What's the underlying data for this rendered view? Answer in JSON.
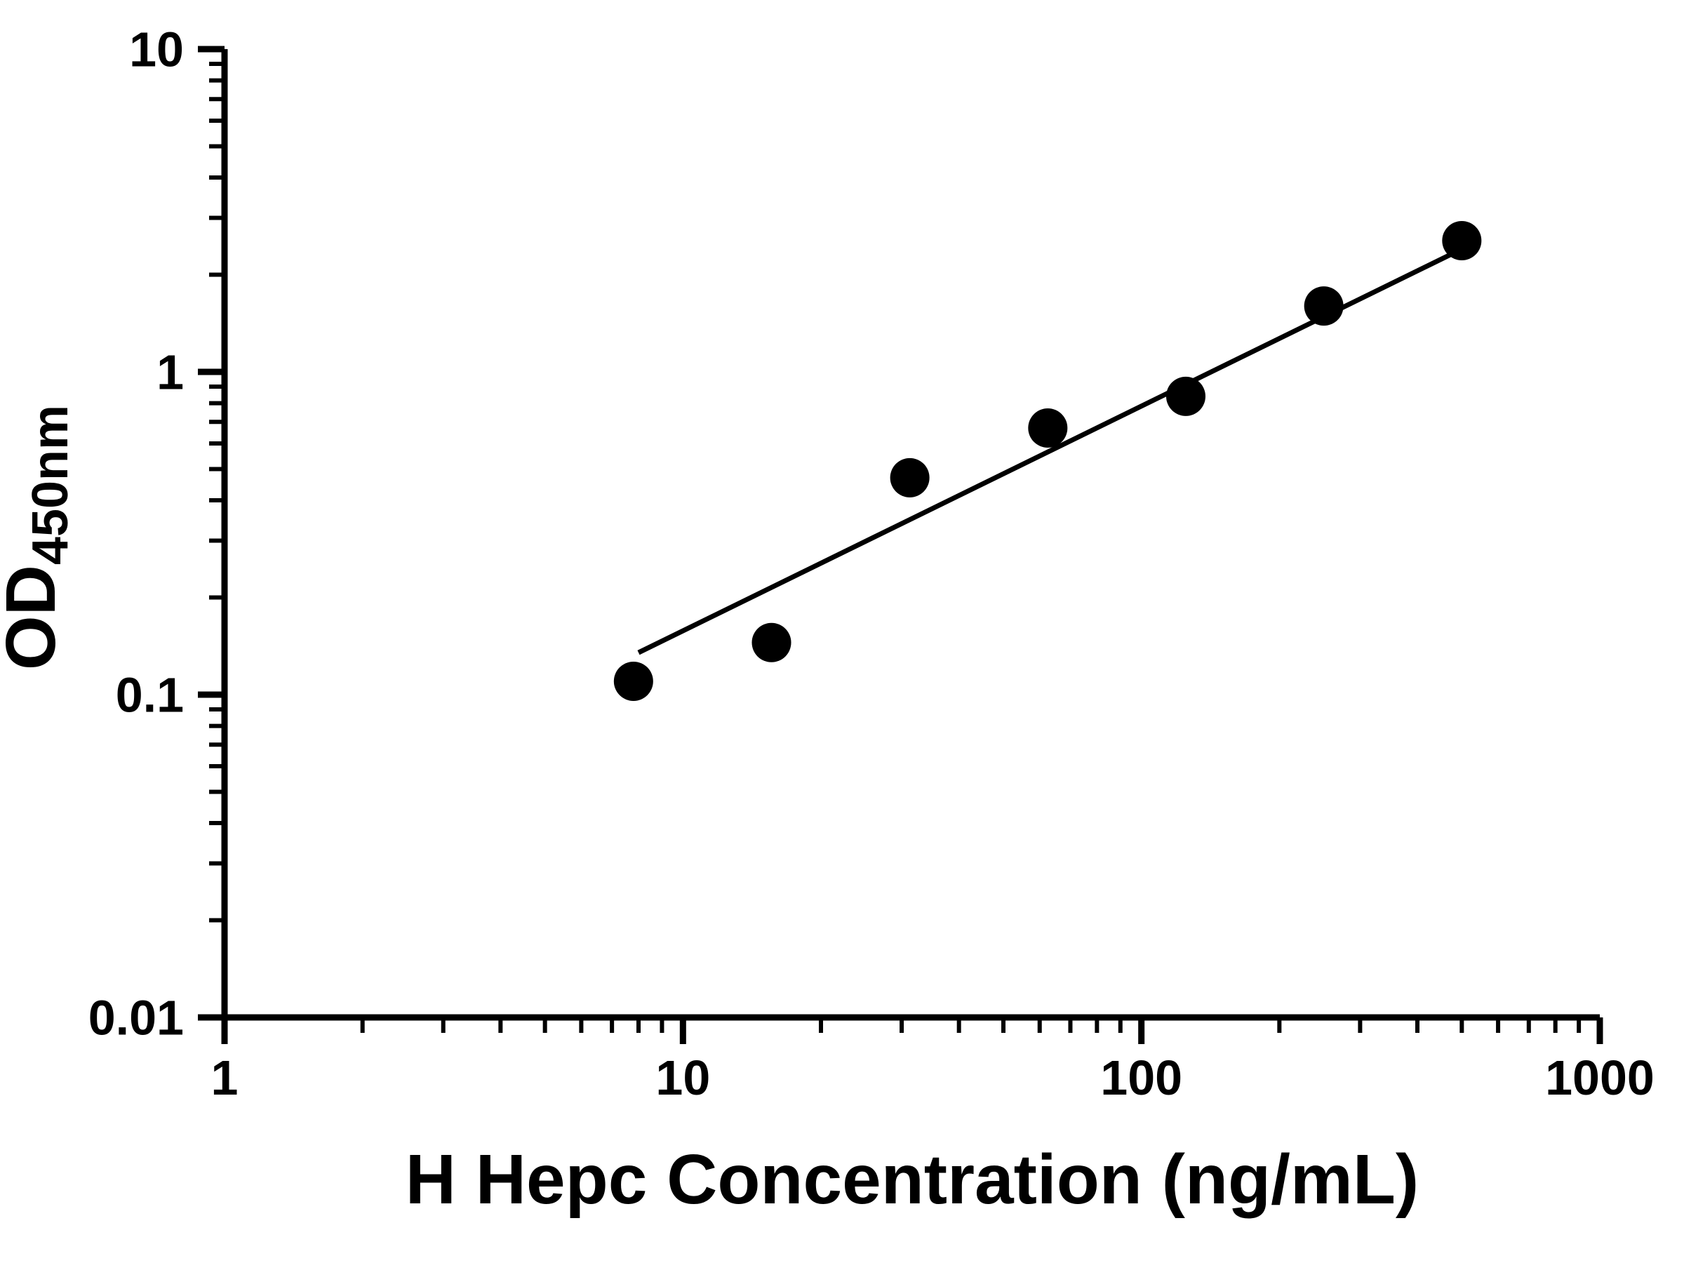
{
  "chart_data": {
    "type": "scatter",
    "title": "",
    "xlabel": "H Hepc Concentration (ng/mL)",
    "ylabel": {
      "main": "OD",
      "sub": "450nm"
    },
    "x_scale": "log",
    "y_scale": "log",
    "xlim": [
      1,
      1000
    ],
    "ylim": [
      0.01,
      10
    ],
    "x_major_ticks": [
      1,
      10,
      100,
      1000
    ],
    "x_tick_labels": [
      "1",
      "10",
      "100",
      "1000"
    ],
    "y_major_ticks": [
      0.01,
      0.1,
      1,
      10
    ],
    "y_tick_labels": [
      "0.01",
      "0.1",
      "1",
      "10"
    ],
    "x_minor_decades": [
      1,
      10,
      100
    ],
    "y_minor_decades": [
      0.01,
      0.1,
      1
    ],
    "points": [
      {
        "x": 7.8,
        "y": 0.11
      },
      {
        "x": 15.6,
        "y": 0.145
      },
      {
        "x": 31.25,
        "y": 0.47
      },
      {
        "x": 62.5,
        "y": 0.67
      },
      {
        "x": 125,
        "y": 0.84
      },
      {
        "x": 250,
        "y": 1.6
      },
      {
        "x": 500,
        "y": 2.55
      }
    ],
    "trendline": {
      "x1": 8,
      "y1": 0.135,
      "x2": 545,
      "y2": 2.55
    },
    "marker_color": "#000000",
    "line_color": "#000000",
    "axis_color": "#000000",
    "background": "#ffffff",
    "grid": false,
    "legend": false
  }
}
